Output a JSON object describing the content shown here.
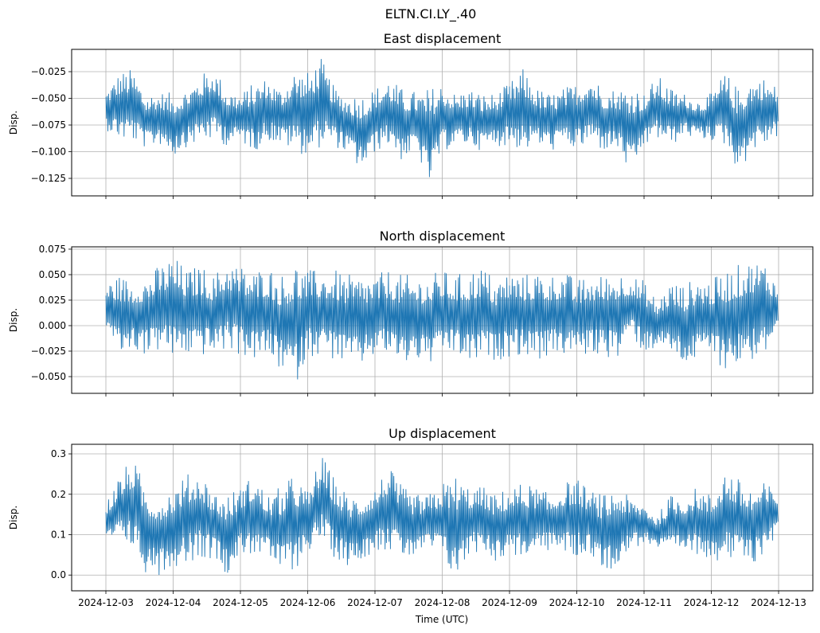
{
  "chart_data": {
    "type": "line",
    "suptitle": "ELTN.CI.LY_.40",
    "xlabel": "Time (UTC)",
    "x_ticks": [
      "2024-12-03",
      "2024-12-04",
      "2024-12-05",
      "2024-12-06",
      "2024-12-07",
      "2024-12-08",
      "2024-12-09",
      "2024-12-10",
      "2024-12-11",
      "2024-12-12",
      "2024-12-13"
    ],
    "x_range_days": [
      -0.51,
      10.5
    ],
    "envelope_step_days": 0.2,
    "envelope_note": "min/max envelope sampled every 0.2 day starting 2024-12-03",
    "color": "#1f77b4",
    "grid": true,
    "panels": [
      {
        "title": "East displacement",
        "ylabel": "Disp.",
        "ylim": [
          -0.1414,
          -0.0041
        ],
        "y_ticks": [
          -0.025,
          -0.05,
          -0.075,
          -0.1,
          -0.125
        ],
        "y_tick_labels": [
          "−0.025",
          "−0.050",
          "−0.075",
          "−0.100",
          "−0.125"
        ],
        "max": [
          -0.042,
          -0.025,
          -0.022,
          -0.045,
          -0.043,
          -0.045,
          -0.04,
          -0.028,
          -0.02,
          -0.04,
          -0.045,
          -0.035,
          -0.03,
          -0.04,
          -0.022,
          -0.025,
          -0.012,
          -0.04,
          -0.045,
          -0.045,
          -0.04,
          -0.03,
          -0.04,
          -0.043,
          -0.04,
          -0.035,
          -0.045,
          -0.04,
          -0.045,
          -0.045,
          -0.035,
          -0.022,
          -0.04,
          -0.045,
          -0.04,
          -0.035,
          -0.025,
          -0.04,
          -0.04,
          -0.035,
          -0.045,
          -0.028,
          -0.04,
          -0.045,
          -0.05,
          -0.045,
          -0.025,
          -0.04,
          -0.03,
          -0.03,
          -0.04
        ],
        "min": [
          -0.08,
          -0.09,
          -0.092,
          -0.098,
          -0.094,
          -0.105,
          -0.095,
          -0.092,
          -0.09,
          -0.095,
          -0.092,
          -0.1,
          -0.09,
          -0.095,
          -0.1,
          -0.105,
          -0.095,
          -0.095,
          -0.105,
          -0.12,
          -0.1,
          -0.095,
          -0.11,
          -0.1,
          -0.133,
          -0.1,
          -0.095,
          -0.095,
          -0.1,
          -0.095,
          -0.095,
          -0.1,
          -0.095,
          -0.1,
          -0.095,
          -0.1,
          -0.095,
          -0.1,
          -0.1,
          -0.125,
          -0.095,
          -0.09,
          -0.095,
          -0.085,
          -0.09,
          -0.09,
          -0.095,
          -0.12,
          -0.1,
          -0.095,
          -0.085
        ]
      },
      {
        "title": "North displacement",
        "ylabel": "Disp.",
        "ylim": [
          -0.0664,
          0.0773
        ],
        "y_ticks": [
          0.075,
          0.05,
          0.025,
          0,
          -0.025,
          -0.05
        ],
        "y_tick_labels": [
          "0.075",
          "0.050",
          "0.025",
          "0.000",
          "−0.025",
          "−0.050"
        ],
        "max": [
          0.042,
          0.05,
          0.045,
          0.05,
          0.06,
          0.07,
          0.055,
          0.06,
          0.05,
          0.065,
          0.06,
          0.055,
          0.06,
          0.05,
          0.065,
          0.055,
          0.055,
          0.055,
          0.05,
          0.05,
          0.05,
          0.055,
          0.05,
          0.05,
          0.05,
          0.055,
          0.05,
          0.055,
          0.06,
          0.045,
          0.055,
          0.05,
          0.055,
          0.05,
          0.055,
          0.045,
          0.05,
          0.05,
          0.055,
          0.05,
          0.045,
          0.025,
          0.045,
          0.04,
          0.05,
          0.045,
          0.055,
          0.06,
          0.065,
          0.065,
          0.04
        ],
        "min": [
          -0.005,
          -0.03,
          -0.025,
          -0.03,
          -0.025,
          -0.035,
          -0.03,
          -0.03,
          -0.03,
          -0.025,
          -0.03,
          -0.035,
          -0.035,
          -0.045,
          -0.06,
          -0.03,
          -0.03,
          -0.035,
          -0.04,
          -0.04,
          -0.03,
          -0.03,
          -0.04,
          -0.035,
          -0.04,
          -0.03,
          -0.03,
          -0.04,
          -0.035,
          -0.035,
          -0.03,
          -0.03,
          -0.035,
          -0.03,
          -0.03,
          -0.03,
          -0.03,
          -0.03,
          -0.035,
          -0.01,
          -0.03,
          -0.02,
          -0.03,
          -0.04,
          -0.035,
          -0.03,
          -0.045,
          -0.04,
          -0.035,
          -0.03,
          -0.01
        ]
      },
      {
        "title": "Up displacement",
        "ylabel": "Disp.",
        "ylim": [
          -0.039,
          0.3237
        ],
        "y_ticks": [
          0.3,
          0.2,
          0.1,
          0.0
        ],
        "y_tick_labels": [
          "0.3",
          "0.2",
          "0.1",
          "0.0"
        ],
        "max": [
          0.18,
          0.25,
          0.29,
          0.22,
          0.2,
          0.22,
          0.25,
          0.26,
          0.21,
          0.2,
          0.22,
          0.25,
          0.2,
          0.22,
          0.25,
          0.21,
          0.3,
          0.24,
          0.2,
          0.2,
          0.22,
          0.27,
          0.22,
          0.2,
          0.2,
          0.23,
          0.25,
          0.22,
          0.22,
          0.2,
          0.22,
          0.23,
          0.22,
          0.2,
          0.23,
          0.24,
          0.21,
          0.2,
          0.22,
          0.19,
          0.18,
          0.15,
          0.2,
          0.2,
          0.22,
          0.2,
          0.27,
          0.24,
          0.22,
          0.23,
          0.21
        ],
        "min": [
          0.07,
          0.08,
          0.06,
          0.0,
          0.0,
          0.02,
          0.03,
          0.04,
          0.04,
          0.0,
          0.05,
          0.05,
          0.04,
          0.0,
          0.01,
          0.06,
          0.08,
          0.04,
          0.02,
          0.04,
          0.06,
          0.06,
          0.04,
          0.04,
          0.06,
          0.04,
          -0.02,
          0.05,
          0.06,
          0.03,
          0.05,
          0.04,
          0.05,
          0.06,
          0.05,
          0.04,
          0.05,
          0.0,
          0.03,
          0.06,
          0.08,
          0.06,
          0.05,
          0.05,
          0.05,
          0.04,
          0.03,
          0.03,
          0.02,
          0.06,
          0.1
        ]
      }
    ]
  }
}
